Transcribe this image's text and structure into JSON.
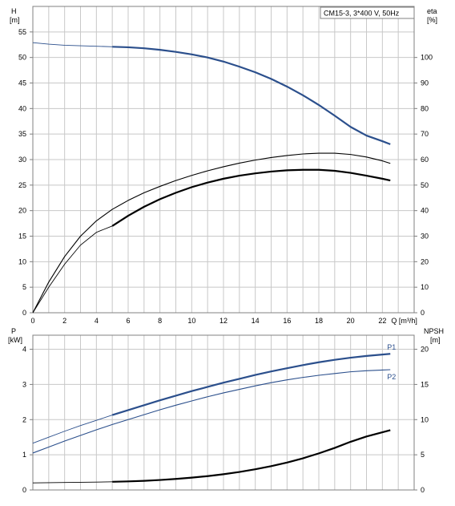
{
  "chart_data": [
    {
      "type": "line",
      "title": "CM15-3, 3*400 V, 50Hz",
      "xlabel": "Q [m³/h]",
      "ylabel_left": "H",
      "ylabel_left_unit": "[m]",
      "ylabel_right": "eta",
      "ylabel_right_unit": "[%]",
      "xlim": [
        0,
        24
      ],
      "ylim_left": [
        0,
        60
      ],
      "ylim_right": [
        0,
        120
      ],
      "x_ticks": [
        "0",
        "2",
        "4",
        "6",
        "8",
        "10",
        "12",
        "14",
        "16",
        "18",
        "20",
        "22"
      ],
      "y_left_ticks": [
        "0",
        "5",
        "10",
        "15",
        "20",
        "25",
        "30",
        "35",
        "40",
        "45",
        "50",
        "55"
      ],
      "y_right_ticks": [
        "0",
        "10",
        "20",
        "30",
        "40",
        "50",
        "60",
        "70",
        "80",
        "90",
        "100"
      ],
      "grid": true,
      "series": [
        {
          "id": "head",
          "axis": "left",
          "color": "#2b4f8c",
          "thin_x": [
            0,
            1,
            2,
            3,
            4,
            5
          ],
          "thin_y": [
            52.9,
            52.6,
            52.4,
            52.3,
            52.2,
            52.1
          ],
          "x": [
            5,
            6,
            7,
            8,
            9,
            10,
            11,
            12,
            13,
            14,
            15,
            16,
            17,
            18,
            19,
            20,
            21,
            22,
            22.5
          ],
          "y": [
            52.1,
            52.0,
            51.8,
            51.5,
            51.1,
            50.6,
            50.0,
            49.2,
            48.2,
            47.1,
            45.8,
            44.3,
            42.6,
            40.7,
            38.6,
            36.4,
            34.7,
            33.6,
            33.0
          ]
        },
        {
          "id": "eta-thin",
          "axis": "right",
          "color": "#000000",
          "x": [
            0,
            1,
            2,
            3,
            4,
            5,
            6,
            7,
            8,
            9,
            10,
            11,
            12,
            13,
            14,
            15,
            16,
            17,
            18,
            19,
            20,
            21,
            22,
            22.5
          ],
          "y": [
            0,
            12,
            22,
            30,
            36,
            40.5,
            44,
            47,
            49.5,
            51.8,
            53.8,
            55.6,
            57.2,
            58.6,
            59.8,
            60.8,
            61.6,
            62.2,
            62.5,
            62.5,
            62,
            61,
            59.5,
            58.5
          ]
        },
        {
          "id": "eta-thick",
          "axis": "right",
          "color": "#000000",
          "thin_x": [
            0,
            1,
            2,
            3,
            4,
            5
          ],
          "thin_y": [
            0,
            10,
            19,
            26.5,
            31.5,
            34
          ],
          "x": [
            5,
            6,
            7,
            8,
            9,
            10,
            11,
            12,
            13,
            14,
            15,
            16,
            17,
            18,
            19,
            20,
            21,
            22,
            22.5
          ],
          "y": [
            34,
            38,
            41.5,
            44.5,
            47,
            49.2,
            51,
            52.5,
            53.7,
            54.6,
            55.3,
            55.8,
            56,
            56,
            55.6,
            54.8,
            53.7,
            52.5,
            51.8
          ]
        }
      ]
    },
    {
      "type": "line",
      "xlabel": "",
      "ylabel_left": "P",
      "ylabel_left_unit": "[kW]",
      "ylabel_right": "NPSH",
      "ylabel_right_unit": "[m]",
      "xlim": [
        0,
        24
      ],
      "ylim_left": [
        0,
        4.4
      ],
      "ylim_right": [
        0,
        22
      ],
      "y_left_ticks": [
        "0",
        "1",
        "2",
        "3",
        "4"
      ],
      "y_right_ticks": [
        "0",
        "5",
        "10",
        "15",
        "20"
      ],
      "grid": true,
      "series": [
        {
          "id": "p1",
          "name": "P1",
          "axis": "left",
          "color": "#2b4f8c",
          "thin_x": [
            0,
            1,
            2,
            3,
            4,
            5
          ],
          "thin_y": [
            1.33,
            1.5,
            1.67,
            1.83,
            1.98,
            2.13
          ],
          "x": [
            5,
            6,
            7,
            8,
            9,
            10,
            11,
            12,
            13,
            14,
            15,
            16,
            17,
            18,
            19,
            20,
            21,
            22,
            22.5
          ],
          "y": [
            2.13,
            2.27,
            2.41,
            2.55,
            2.68,
            2.81,
            2.93,
            3.05,
            3.16,
            3.27,
            3.37,
            3.46,
            3.55,
            3.63,
            3.7,
            3.76,
            3.81,
            3.85,
            3.87
          ]
        },
        {
          "id": "p2",
          "name": "P2",
          "axis": "left",
          "color": "#2b4f8c",
          "x": [
            0,
            1,
            2,
            3,
            4,
            5,
            6,
            7,
            8,
            9,
            10,
            11,
            12,
            13,
            14,
            15,
            16,
            17,
            18,
            19,
            20,
            21,
            22,
            22.5
          ],
          "y": [
            1.05,
            1.22,
            1.39,
            1.55,
            1.71,
            1.86,
            2.0,
            2.14,
            2.28,
            2.41,
            2.53,
            2.65,
            2.76,
            2.86,
            2.96,
            3.05,
            3.13,
            3.2,
            3.26,
            3.31,
            3.36,
            3.39,
            3.41,
            3.42
          ]
        },
        {
          "id": "npsh",
          "axis": "right",
          "color": "#000000",
          "thin_x": [
            0,
            1,
            2,
            3,
            4,
            5
          ],
          "thin_y": [
            1.0,
            1.03,
            1.06,
            1.09,
            1.12,
            1.16
          ],
          "x": [
            5,
            6,
            7,
            8,
            9,
            10,
            11,
            12,
            13,
            14,
            15,
            16,
            17,
            18,
            19,
            20,
            21,
            22,
            22.5
          ],
          "y": [
            1.16,
            1.22,
            1.3,
            1.42,
            1.57,
            1.75,
            1.97,
            2.24,
            2.56,
            2.94,
            3.38,
            3.9,
            4.5,
            5.2,
            5.98,
            6.85,
            7.6,
            8.2,
            8.5
          ]
        }
      ]
    }
  ]
}
